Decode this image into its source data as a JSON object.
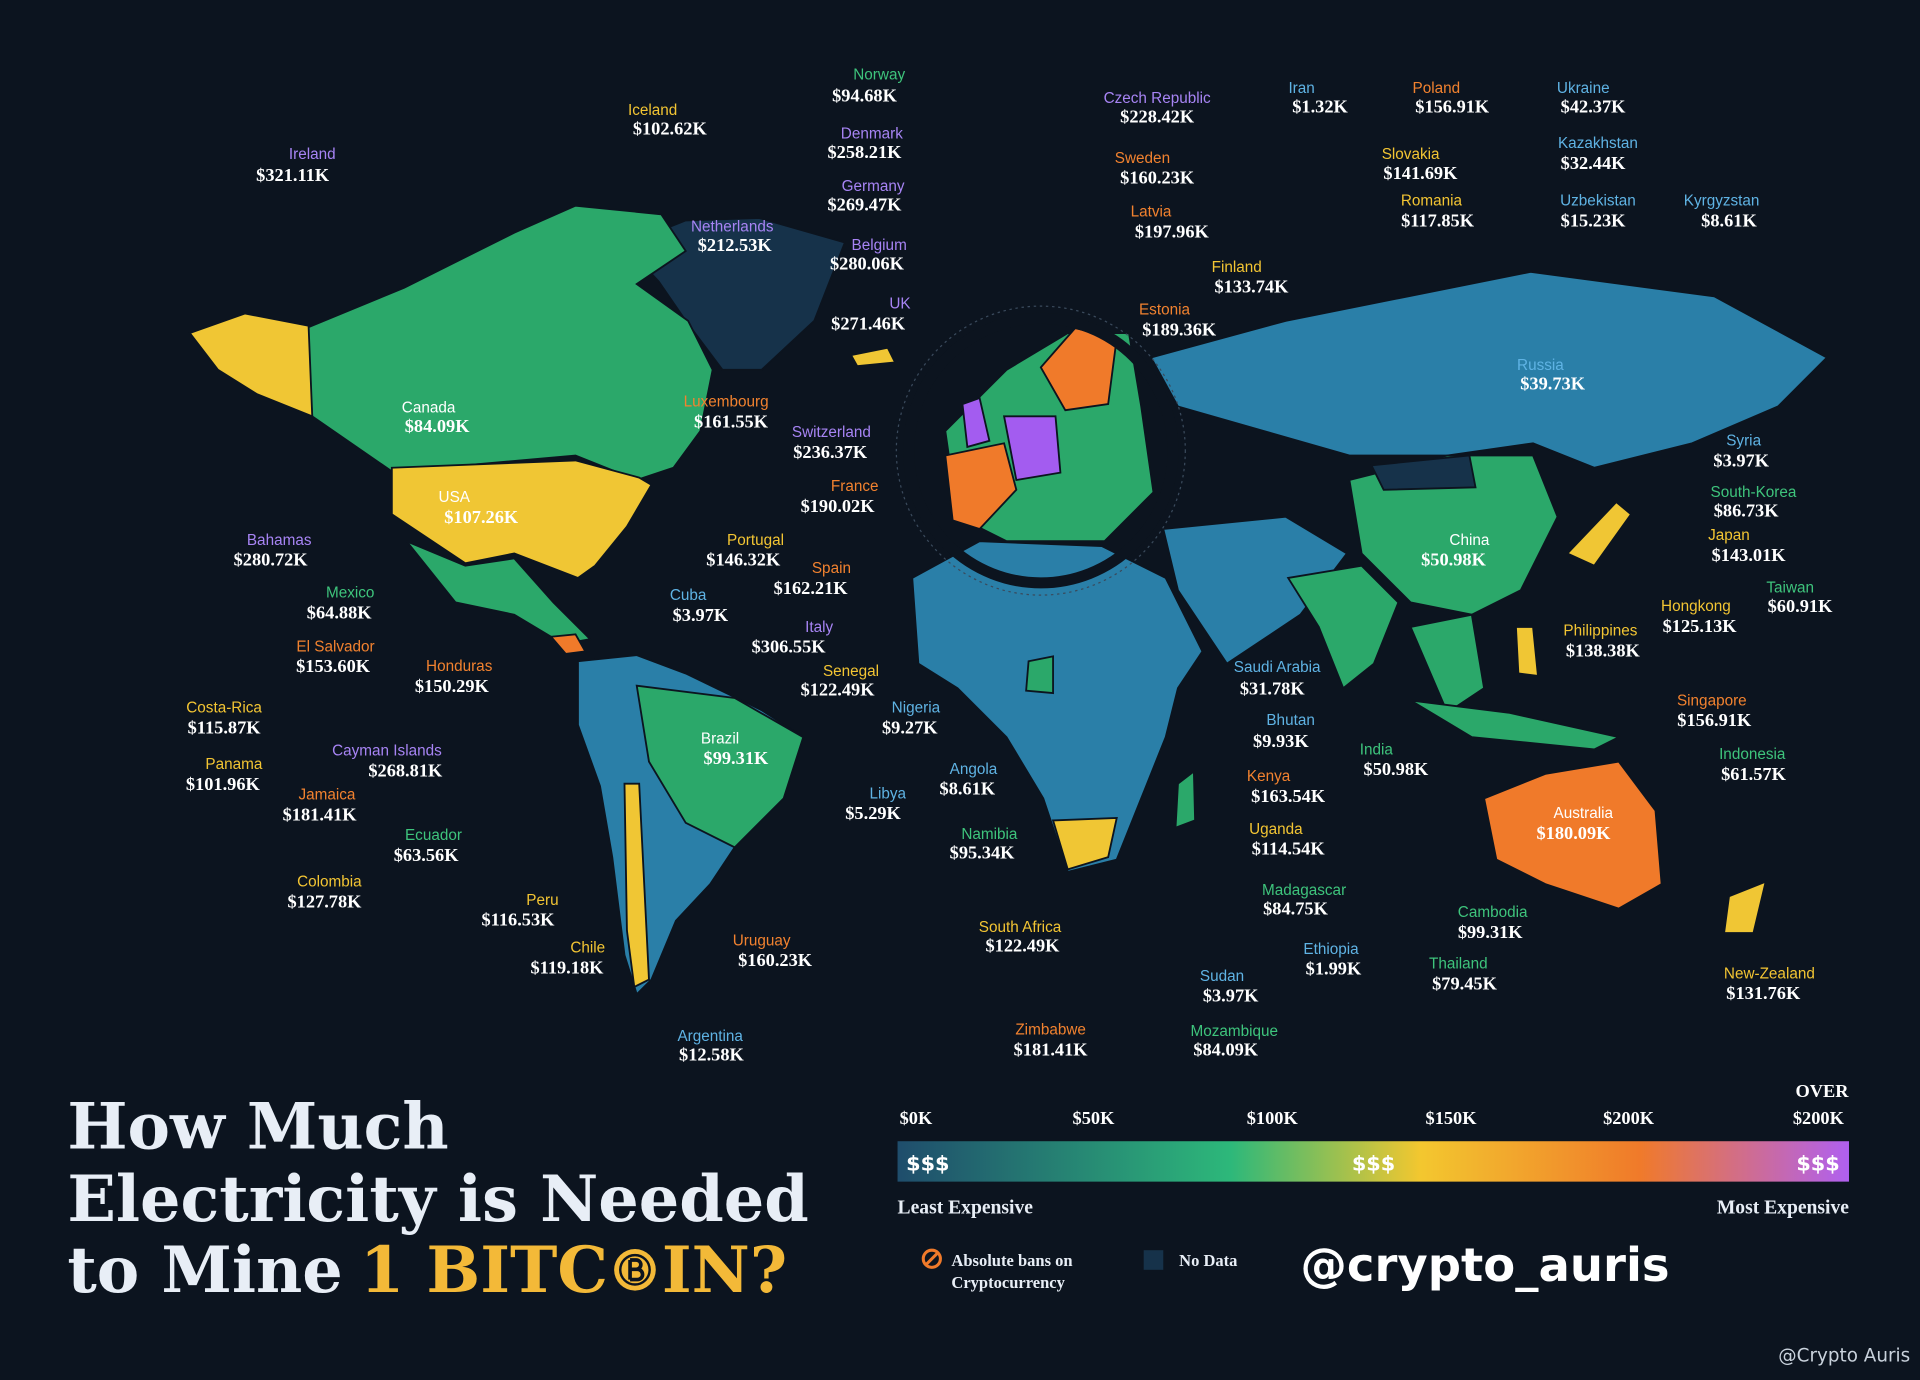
{
  "title": {
    "line1": "How Much",
    "line2": "Electricity is Needed",
    "line3": "to Mine",
    "highlight": "1 BITC",
    "end": "IN?"
  },
  "countries": [
    {
      "name": "Norway",
      "value": "$94.68K"
    },
    {
      "name": "Iceland",
      "value": "$102.62K"
    },
    {
      "name": "Ireland",
      "value": "$321.11K"
    },
    {
      "name": "Denmark",
      "value": "$258.21K"
    },
    {
      "name": "Czech Republic",
      "value": "$228.42K"
    },
    {
      "name": "Iran",
      "value": "$1.32K"
    },
    {
      "name": "Poland",
      "value": "$156.91K"
    },
    {
      "name": "Ukraine",
      "value": "$42.37K"
    },
    {
      "name": "Germany",
      "value": "$269.47K"
    },
    {
      "name": "Sweden",
      "value": "$160.23K"
    },
    {
      "name": "Slovakia",
      "value": "$141.69K"
    },
    {
      "name": "Kazakhstan",
      "value": "$32.44K"
    },
    {
      "name": "Netherlands",
      "value": "$212.53K"
    },
    {
      "name": "Belgium",
      "value": "$280.06K"
    },
    {
      "name": "Latvia",
      "value": "$197.96K"
    },
    {
      "name": "Romania",
      "value": "$117.85K"
    },
    {
      "name": "Uzbekistan",
      "value": "$15.23K"
    },
    {
      "name": "Kyrgyzstan",
      "value": "$8.61K"
    },
    {
      "name": "Finland",
      "value": "$133.74K"
    },
    {
      "name": "UK",
      "value": "$271.46K"
    },
    {
      "name": "Estonia",
      "value": "$189.36K"
    },
    {
      "name": "Russia",
      "value": "$39.73K"
    },
    {
      "name": "Canada",
      "value": "$84.09K"
    },
    {
      "name": "Luxembourg",
      "value": "$161.55K"
    },
    {
      "name": "Switzerland",
      "value": "$236.37K"
    },
    {
      "name": "Syria",
      "value": "$3.97K"
    },
    {
      "name": "USA",
      "value": "$107.26K"
    },
    {
      "name": "France",
      "value": "$190.02K"
    },
    {
      "name": "South-Korea",
      "value": "$86.73K"
    },
    {
      "name": "Bahamas",
      "value": "$280.72K"
    },
    {
      "name": "Portugal",
      "value": "$146.32K"
    },
    {
      "name": "China",
      "value": "$50.98K"
    },
    {
      "name": "Japan",
      "value": "$143.01K"
    },
    {
      "name": "Spain",
      "value": "$162.21K"
    },
    {
      "name": "Mexico",
      "value": "$64.88K"
    },
    {
      "name": "Cuba",
      "value": "$3.97K"
    },
    {
      "name": "Taiwan",
      "value": "$60.91K"
    },
    {
      "name": "Hongkong",
      "value": "$125.13K"
    },
    {
      "name": "El Salvador",
      "value": "$153.60K"
    },
    {
      "name": "Italy",
      "value": "$306.55K"
    },
    {
      "name": "Philippines",
      "value": "$138.38K"
    },
    {
      "name": "Saudi Arabia",
      "value": "$31.78K"
    },
    {
      "name": "Honduras",
      "value": "$150.29K"
    },
    {
      "name": "Senegal",
      "value": "$122.49K"
    },
    {
      "name": "Costa-Rica",
      "value": "$115.87K"
    },
    {
      "name": "Nigeria",
      "value": "$9.27K"
    },
    {
      "name": "Bhutan",
      "value": "$9.93K"
    },
    {
      "name": "Singapore",
      "value": "$156.91K"
    },
    {
      "name": "Brazil",
      "value": "$99.31K"
    },
    {
      "name": "Cayman Islands",
      "value": "$268.81K"
    },
    {
      "name": "Indonesia",
      "value": "$61.57K"
    },
    {
      "name": "India",
      "value": "$50.98K"
    },
    {
      "name": "Panama",
      "value": "$101.96K"
    },
    {
      "name": "Angola",
      "value": "$8.61K"
    },
    {
      "name": "Kenya",
      "value": "$163.54K"
    },
    {
      "name": "Jamaica",
      "value": "$181.41K"
    },
    {
      "name": "Libya",
      "value": "$5.29K"
    },
    {
      "name": "Australia",
      "value": "$180.09K"
    },
    {
      "name": "Ecuador",
      "value": "$63.56K"
    },
    {
      "name": "Namibia",
      "value": "$95.34K"
    },
    {
      "name": "Uganda",
      "value": "$114.54K"
    },
    {
      "name": "Madagascar",
      "value": "$84.75K"
    },
    {
      "name": "Colombia",
      "value": "$127.78K"
    },
    {
      "name": "Peru",
      "value": "$116.53K"
    },
    {
      "name": "Cambodia",
      "value": "$99.31K"
    },
    {
      "name": "South Africa",
      "value": "$122.49K"
    },
    {
      "name": "Chile",
      "value": "$119.18K"
    },
    {
      "name": "Uruguay",
      "value": "$160.23K"
    },
    {
      "name": "Ethiopia",
      "value": "$1.99K"
    },
    {
      "name": "Thailand",
      "value": "$79.45K"
    },
    {
      "name": "New-Zealand",
      "value": "$131.76K"
    },
    {
      "name": "Sudan",
      "value": "$3.97K"
    },
    {
      "name": "Argentina",
      "value": "$12.58K"
    },
    {
      "name": "Zimbabwe",
      "value": "$181.41K"
    },
    {
      "name": "Mozambique",
      "value": "$84.09K"
    }
  ],
  "legend": {
    "ticks": [
      "$0K",
      "$50K",
      "$100K",
      "$150K",
      "$200K"
    ],
    "over": "OVER",
    "over_value": "$200K",
    "symbol": "$$$",
    "least": "Least Expensive",
    "most": "Most Expensive",
    "ban_line1": "Absolute bans on",
    "ban_line2": "Cryptocurrency",
    "no_data": "No Data"
  },
  "handle": "@crypto_auris",
  "watermark": "@Crypto Auris"
}
